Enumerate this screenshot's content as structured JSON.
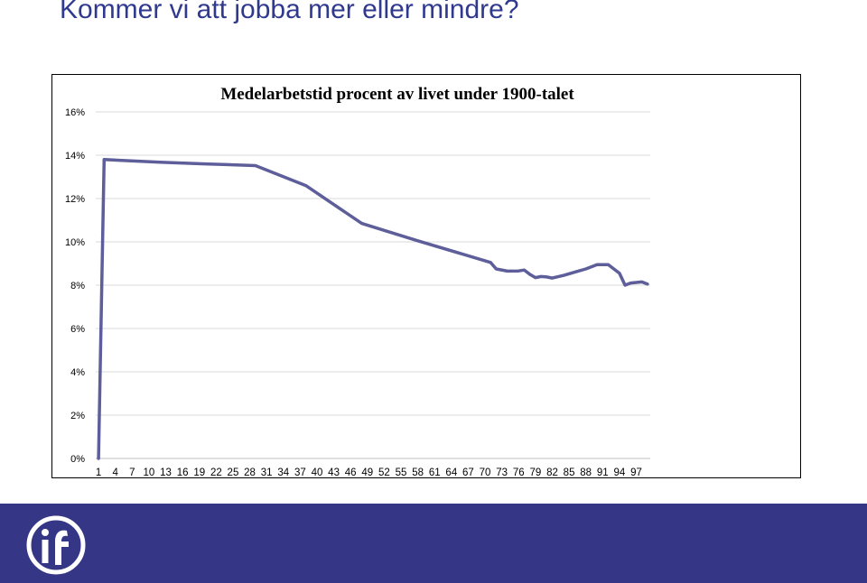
{
  "slide": {
    "title": "Kommer vi att jobba mer eller mindre?"
  },
  "colors": {
    "title": "#2f3a8f",
    "series_line": "#5e5e9a",
    "footer": "#353786",
    "grid": "#d9d9d9"
  },
  "logo": {
    "icon": "organization-logo-icon"
  },
  "chart_data": {
    "type": "line",
    "title": "Medelarbetstid procent av livet under 1900-talet",
    "xlabel": "",
    "ylabel": "",
    "ylim": [
      0,
      0.16
    ],
    "yticks": [
      0,
      0.02,
      0.04,
      0.06,
      0.08,
      0.1,
      0.12,
      0.14,
      0.16
    ],
    "ytick_labels": [
      "0%",
      "2%",
      "4%",
      "6%",
      "8%",
      "10%",
      "12%",
      "14%",
      "16%"
    ],
    "x_count": 99,
    "xtick_labels": [
      "1",
      "4",
      "7",
      "10",
      "13",
      "16",
      "19",
      "22",
      "25",
      "28",
      "31",
      "34",
      "37",
      "40",
      "43",
      "46",
      "49",
      "52",
      "55",
      "58",
      "61",
      "64",
      "67",
      "70",
      "73",
      "76",
      "79",
      "82",
      "85",
      "88",
      "91",
      "94",
      "97"
    ],
    "grid": true,
    "legend": "none",
    "series": [
      {
        "name": "",
        "x": [
          1,
          2,
          6,
          12,
          20,
          29,
          38,
          48,
          58,
          71,
          72,
          74,
          76,
          77,
          78,
          79,
          80,
          81,
          82,
          84,
          86,
          88,
          90,
          92,
          94,
          95,
          96,
          98,
          99
        ],
        "values": [
          0.0,
          0.138,
          0.1375,
          0.1368,
          0.136,
          0.1352,
          0.126,
          0.1085,
          0.1005,
          0.0905,
          0.0875,
          0.0865,
          0.0866,
          0.087,
          0.085,
          0.0835,
          0.084,
          0.0838,
          0.0833,
          0.0845,
          0.086,
          0.0875,
          0.0895,
          0.0895,
          0.0855,
          0.08,
          0.081,
          0.0815,
          0.0805
        ]
      }
    ]
  }
}
